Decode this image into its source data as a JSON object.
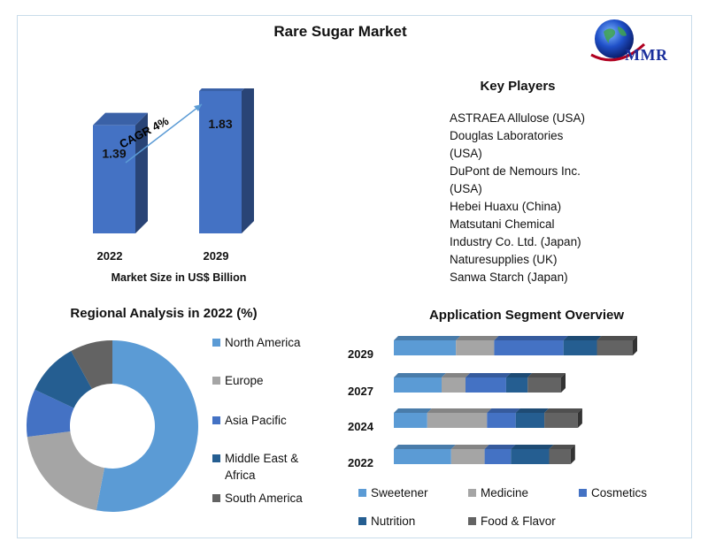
{
  "title": "Rare Sugar Market",
  "logo": {
    "text": "MMR"
  },
  "market_size": {
    "label": "Market Size in US$ Billion",
    "cagr": "CAGR 4%",
    "bars": [
      {
        "year": "2022",
        "value": 1.39,
        "value_label": "1.39"
      },
      {
        "year": "2029",
        "value": 1.83,
        "value_label": "1.83"
      }
    ]
  },
  "key_players": {
    "title": "Key Players",
    "items": [
      "ASTRAEA Allulose (USA)",
      "Douglas Laboratories (USA)",
      "DuPont de Nemours Inc. (USA)",
      "Hebei Huaxu (China)",
      "Matsutani Chemical Industry Co. Ltd. (Japan)",
      "Naturesupplies (UK)",
      "Sanwa Starch (Japan)"
    ]
  },
  "regional": {
    "title": "Regional Analysis in 2022 (%)",
    "legend": [
      "North America",
      "Europe",
      "Asia Pacific",
      "Middle East & Africa",
      "South America"
    ]
  },
  "application": {
    "title": "Application Segment Overview",
    "legend": [
      "Sweetener",
      "Medicine",
      "Cosmetics",
      "Nutrition",
      "Food & Flavor"
    ]
  },
  "colors": {
    "north_america": "#5b9bd5",
    "europe": "#a5a5a5",
    "asia_pacific": "#4472c4",
    "middle_east_africa": "#255e91",
    "south_america": "#636363",
    "sweetener": "#5b9bd5",
    "medicine": "#a5a5a5",
    "cosmetics": "#4472c4",
    "nutrition": "#255e91",
    "food_flavor": "#636363",
    "bar": "#4472c4"
  },
  "chart_data": [
    {
      "type": "bar",
      "categories": [
        "2022",
        "2029"
      ],
      "values": [
        1.39,
        1.83
      ],
      "title": "",
      "xlabel": "Market Size in US$ Billion",
      "ylabel": "",
      "annotation": "CAGR 4%"
    },
    {
      "type": "pie",
      "title": "Regional Analysis in 2022 (%)",
      "donut": true,
      "labels": [
        "North America",
        "Europe",
        "Asia Pacific",
        "Middle East & Africa",
        "South America"
      ],
      "values": [
        53,
        20,
        9,
        10,
        8
      ],
      "legend": "right"
    },
    {
      "type": "bar",
      "orientation": "horizontal",
      "stacked": true,
      "title": "Application Segment Overview",
      "categories": [
        "2029",
        "2027",
        "2024",
        "2022"
      ],
      "series": [
        {
          "name": "Sweetener",
          "values": [
            26,
            20,
            14,
            24
          ]
        },
        {
          "name": "Medicine",
          "values": [
            16,
            10,
            25,
            14
          ]
        },
        {
          "name": "Cosmetics",
          "values": [
            29,
            17,
            12,
            11
          ]
        },
        {
          "name": "Nutrition",
          "values": [
            14,
            9,
            12,
            16
          ]
        },
        {
          "name": "Food & Flavor",
          "values": [
            15,
            14,
            14,
            9
          ]
        }
      ],
      "legend": "bottom"
    }
  ]
}
